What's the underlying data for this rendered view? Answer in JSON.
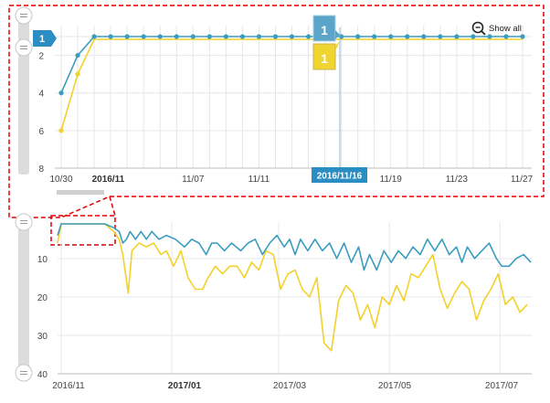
{
  "colors": {
    "series_blue": "#3a9cbe",
    "series_yellow": "#f2d12b",
    "grid": "#e6e6e6",
    "accent_red": "#e00000",
    "badge_blue": "#2b8dc1",
    "badge_yellow": "#e8cc2a",
    "slider": "#dcdcdc"
  },
  "toolbar": {
    "show_all_label": "Show all",
    "show_all_icon": "zoom-out-icon"
  },
  "detail": {
    "current_rank_label": "1",
    "hover_date_label": "2016/11/16",
    "tooltip": {
      "blue_rank": "1",
      "yellow_rank": "1"
    }
  },
  "chart_data": [
    {
      "type": "line",
      "title": "",
      "xlabel": "",
      "ylabel": "",
      "x_ticks": [
        "10/30",
        "2016/11",
        "11/07",
        "11/11",
        "2016/11/16",
        "11/19",
        "11/23",
        "11/27"
      ],
      "y_ticks": [
        "1",
        "2",
        "4",
        "6",
        "8"
      ],
      "ylim": [
        8,
        1
      ],
      "y_inverted": true,
      "grid": true,
      "x": [
        "10/30",
        "10/31",
        "11/01",
        "11/02",
        "11/03",
        "11/04",
        "11/05",
        "11/06",
        "11/07",
        "11/08",
        "11/09",
        "11/10",
        "11/11",
        "11/12",
        "11/13",
        "11/14",
        "11/15",
        "11/16",
        "11/17",
        "11/18",
        "11/19",
        "11/20",
        "11/21",
        "11/22",
        "11/23",
        "11/24",
        "11/25",
        "11/26",
        "11/27"
      ],
      "series": [
        {
          "values": [
            4,
            2,
            1,
            1,
            1,
            1,
            1,
            1,
            1,
            1,
            1,
            1,
            1,
            1,
            1,
            1,
            1,
            1,
            1,
            1,
            1,
            1,
            1,
            1,
            1,
            1,
            1,
            1,
            1
          ]
        },
        {
          "values": [
            6,
            3,
            1,
            1,
            1,
            1,
            1,
            1,
            1,
            1,
            1,
            1,
            1,
            1,
            1,
            1,
            1,
            1,
            1,
            1,
            1,
            1,
            1,
            1,
            1,
            1,
            1,
            1,
            1
          ]
        }
      ]
    },
    {
      "type": "line",
      "title": "",
      "xlabel": "",
      "ylabel": "",
      "x_ticks": [
        "2016/11",
        "2017/01",
        "2017/03",
        "2017/05",
        "2017/07"
      ],
      "y_ticks": [
        "10",
        "20",
        "30",
        "40"
      ],
      "ylim": [
        40,
        1
      ],
      "y_inverted": true,
      "grid": true,
      "series": [
        {
          "points": [
            [
              "2016-10-30",
              4
            ],
            [
              "2016-11-01",
              1
            ],
            [
              "2016-11-15",
              1
            ],
            [
              "2016-11-25",
              1
            ],
            [
              "2016-11-30",
              2
            ],
            [
              "2016-12-03",
              3
            ],
            [
              "2016-12-05",
              6
            ],
            [
              "2016-12-07",
              5
            ],
            [
              "2016-12-09",
              3
            ],
            [
              "2016-12-12",
              5
            ],
            [
              "2016-12-15",
              3
            ],
            [
              "2016-12-18",
              5
            ],
            [
              "2016-12-21",
              3
            ],
            [
              "2016-12-25",
              5
            ],
            [
              "2016-12-29",
              4
            ],
            [
              "2017-01-03",
              5
            ],
            [
              "2017-01-08",
              7
            ],
            [
              "2017-01-12",
              5
            ],
            [
              "2017-01-16",
              6
            ],
            [
              "2017-01-20",
              9
            ],
            [
              "2017-01-23",
              6
            ],
            [
              "2017-01-26",
              6
            ],
            [
              "2017-01-30",
              8
            ],
            [
              "2017-02-03",
              6
            ],
            [
              "2017-02-08",
              8
            ],
            [
              "2017-02-12",
              6
            ],
            [
              "2017-02-16",
              5
            ],
            [
              "2017-02-20",
              9
            ],
            [
              "2017-02-24",
              6
            ],
            [
              "2017-02-28",
              4
            ],
            [
              "2017-03-04",
              7
            ],
            [
              "2017-03-07",
              5
            ],
            [
              "2017-03-10",
              9
            ],
            [
              "2017-03-13",
              5
            ],
            [
              "2017-03-17",
              8
            ],
            [
              "2017-03-21",
              5
            ],
            [
              "2017-03-25",
              8
            ],
            [
              "2017-03-29",
              6
            ],
            [
              "2017-04-02",
              10
            ],
            [
              "2017-04-06",
              6
            ],
            [
              "2017-04-10",
              11
            ],
            [
              "2017-04-14",
              7
            ],
            [
              "2017-04-17",
              13
            ],
            [
              "2017-04-20",
              9
            ],
            [
              "2017-04-24",
              13
            ],
            [
              "2017-04-28",
              8
            ],
            [
              "2017-05-02",
              11
            ],
            [
              "2017-05-06",
              8
            ],
            [
              "2017-05-10",
              10
            ],
            [
              "2017-05-14",
              7
            ],
            [
              "2017-05-18",
              9
            ],
            [
              "2017-05-22",
              5
            ],
            [
              "2017-05-26",
              8
            ],
            [
              "2017-05-30",
              5
            ],
            [
              "2017-06-03",
              9
            ],
            [
              "2017-06-07",
              7
            ],
            [
              "2017-06-10",
              11
            ],
            [
              "2017-06-13",
              7
            ],
            [
              "2017-06-17",
              10
            ],
            [
              "2017-06-21",
              8
            ],
            [
              "2017-06-25",
              6
            ],
            [
              "2017-06-29",
              10
            ],
            [
              "2017-07-02",
              12
            ],
            [
              "2017-07-06",
              12
            ],
            [
              "2017-07-10",
              10
            ],
            [
              "2017-07-14",
              9
            ],
            [
              "2017-07-18",
              11
            ]
          ]
        },
        {
          "points": [
            [
              "2016-10-30",
              6
            ],
            [
              "2016-11-01",
              1
            ],
            [
              "2016-11-15",
              1
            ],
            [
              "2016-11-25",
              1
            ],
            [
              "2016-11-30",
              3
            ],
            [
              "2016-12-03",
              5
            ],
            [
              "2016-12-05",
              9
            ],
            [
              "2016-12-08",
              19
            ],
            [
              "2016-12-10",
              8
            ],
            [
              "2016-12-14",
              6
            ],
            [
              "2016-12-18",
              7
            ],
            [
              "2016-12-22",
              6
            ],
            [
              "2016-12-26",
              9
            ],
            [
              "2016-12-29",
              8
            ],
            [
              "2017-01-02",
              12
            ],
            [
              "2017-01-06",
              8
            ],
            [
              "2017-01-10",
              15
            ],
            [
              "2017-01-14",
              18
            ],
            [
              "2017-01-18",
              18
            ],
            [
              "2017-01-21",
              15
            ],
            [
              "2017-01-25",
              12
            ],
            [
              "2017-01-29",
              14
            ],
            [
              "2017-02-02",
              12
            ],
            [
              "2017-02-06",
              12
            ],
            [
              "2017-02-10",
              15
            ],
            [
              "2017-02-14",
              11
            ],
            [
              "2017-02-18",
              13
            ],
            [
              "2017-02-22",
              8
            ],
            [
              "2017-02-26",
              9
            ],
            [
              "2017-03-02",
              18
            ],
            [
              "2017-03-06",
              14
            ],
            [
              "2017-03-10",
              13
            ],
            [
              "2017-03-14",
              18
            ],
            [
              "2017-03-18",
              20
            ],
            [
              "2017-03-22",
              15
            ],
            [
              "2017-03-26",
              32
            ],
            [
              "2017-03-30",
              34
            ],
            [
              "2017-04-03",
              21
            ],
            [
              "2017-04-07",
              17
            ],
            [
              "2017-04-11",
              19
            ],
            [
              "2017-04-15",
              26
            ],
            [
              "2017-04-19",
              22
            ],
            [
              "2017-04-23",
              28
            ],
            [
              "2017-04-27",
              20
            ],
            [
              "2017-05-01",
              22
            ],
            [
              "2017-05-05",
              17
            ],
            [
              "2017-05-09",
              21
            ],
            [
              "2017-05-13",
              14
            ],
            [
              "2017-05-17",
              15
            ],
            [
              "2017-05-21",
              12
            ],
            [
              "2017-05-25",
              9
            ],
            [
              "2017-05-29",
              18
            ],
            [
              "2017-06-02",
              23
            ],
            [
              "2017-06-06",
              19
            ],
            [
              "2017-06-10",
              16
            ],
            [
              "2017-06-14",
              18
            ],
            [
              "2017-06-18",
              26
            ],
            [
              "2017-06-22",
              21
            ],
            [
              "2017-06-26",
              18
            ],
            [
              "2017-06-30",
              14
            ],
            [
              "2017-07-04",
              22
            ],
            [
              "2017-07-08",
              20
            ],
            [
              "2017-07-12",
              24
            ],
            [
              "2017-07-16",
              22
            ]
          ]
        }
      ]
    }
  ]
}
